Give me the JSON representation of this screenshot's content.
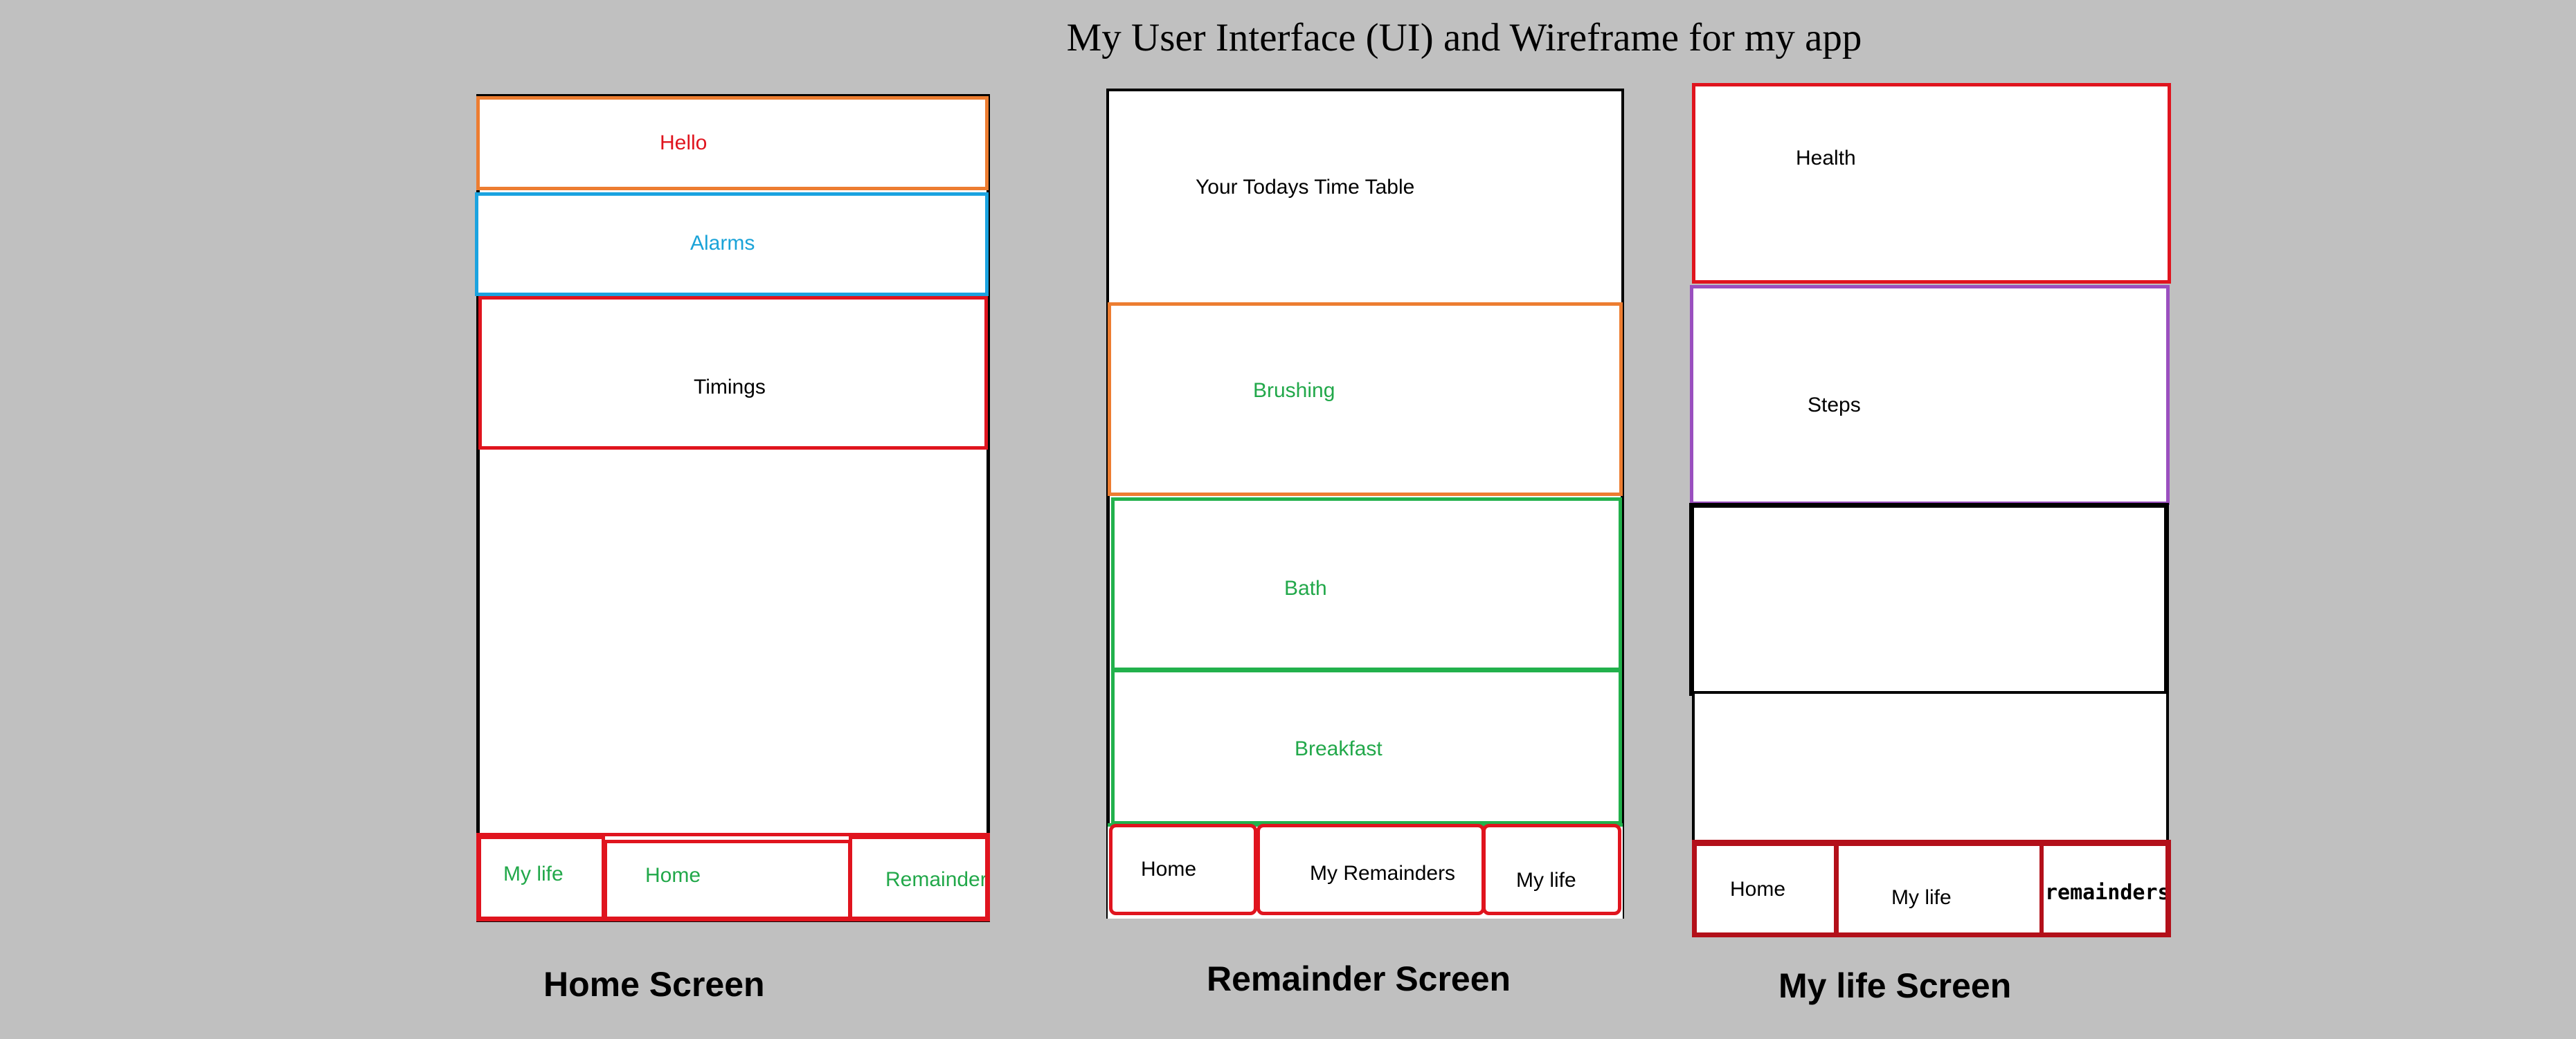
{
  "title": "My User Interface (UI) and Wireframe for my app",
  "colors": {
    "background": "#c0c0c0",
    "orange": "#ed7d31",
    "blue": "#1aa3e0",
    "red": "#e0141e",
    "green": "#22b14c",
    "purple": "#9a4fbf",
    "label_red": "#e0141e",
    "label_blue": "#1aa3d8",
    "label_green": "#22a84a"
  },
  "home": {
    "caption": "Home Screen",
    "hello": "Hello",
    "alarms": "Alarms",
    "timings": "Timings",
    "nav": {
      "my_life": "My life",
      "home": "Home",
      "remainder": "Remainder"
    }
  },
  "remainder": {
    "caption": "Remainder Screen",
    "timetable": "Your Todays Time Table",
    "brushing": "Brushing",
    "bath": "Bath",
    "breakfast": "Breakfast",
    "nav": {
      "home": "Home",
      "my_remainders": "My Remainders",
      "my_life": "My life"
    }
  },
  "mylife": {
    "caption": "My life Screen",
    "health": "Health",
    "steps": "Steps",
    "nav": {
      "home": "Home",
      "my_life": "My life",
      "remainders": "remainders"
    }
  }
}
